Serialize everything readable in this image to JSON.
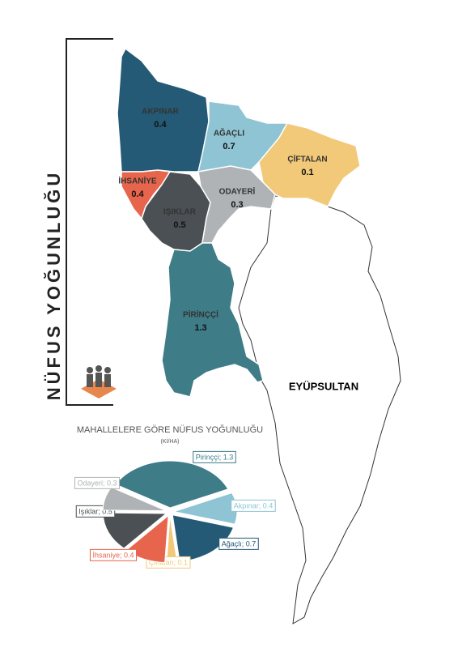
{
  "title": "NÜFUS YOĞUNLUĞU",
  "map": {
    "regions": [
      {
        "name": "AKPINAR",
        "value": 0.4,
        "color": "#245a75"
      },
      {
        "name": "AĞAÇLI",
        "value": 0.7,
        "color": "#8ec4d3"
      },
      {
        "name": "ÇİFTALAN",
        "value": 0.1,
        "color": "#f2c879"
      },
      {
        "name": "İHSANİYE",
        "value": 0.4,
        "color": "#e8654d"
      },
      {
        "name": "IŞIKLAR",
        "value": 0.5,
        "color": "#4a5054"
      },
      {
        "name": "ODAYERİ",
        "value": 0.3,
        "color": "#b0b3b5"
      },
      {
        "name": "PİRİNÇÇİ",
        "value": 1.3,
        "color": "#3e7c88"
      }
    ],
    "neighbor": "EYÜPSULTAN"
  },
  "chart_data": {
    "type": "pie",
    "title": "MAHALLELERE GÖRE NÜFUS YOĞUNLUĞU",
    "subtitle": "(Kİ/HA)",
    "categories": [
      "Pirinççi",
      "Akpınar",
      "Ağaçlı",
      "Çiftalan",
      "İhsaniye",
      "Işıklar",
      "Odayeri"
    ],
    "values": [
      1.3,
      0.4,
      0.7,
      0.1,
      0.4,
      0.5,
      0.3
    ],
    "value_labels": [
      "Pirinççi; 1.3",
      "Akpınar; 0.4",
      "Ağaçlı; 0.7",
      "Çiftalan; 0.1",
      "İhsaniye; 0.4",
      "Işıklar; 0.5",
      "Odayeri; 0.3"
    ],
    "colors": [
      "#3e7c88",
      "#8ec4d3",
      "#245a75",
      "#f2c879",
      "#e8654d",
      "#4a5054",
      "#b0b3b5"
    ]
  }
}
